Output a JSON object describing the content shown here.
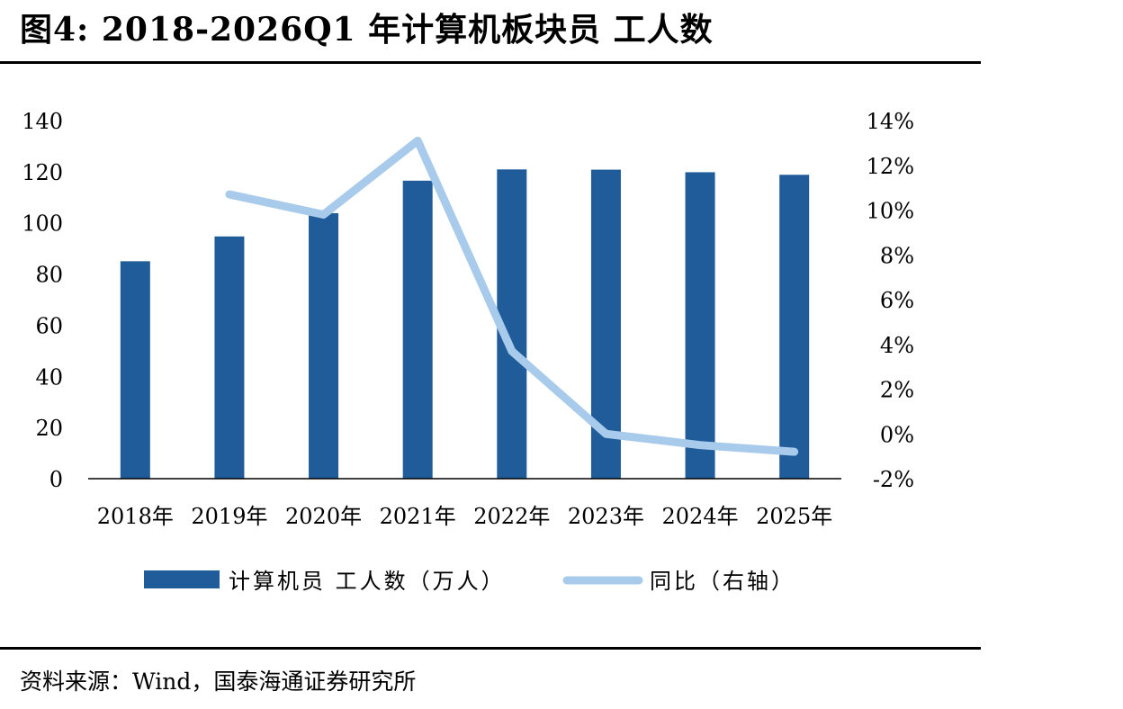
{
  "title": "图4:  2018-2026Q1 年计算机板块员 工人数",
  "source": "资料来源：Wind，国泰海通证券研究所",
  "colors": {
    "bar": "#1f5c99",
    "line": "#a8cbec",
    "axis": "#000000"
  },
  "chart_data": {
    "type": "bar",
    "categories": [
      "2018年",
      "2019年",
      "2020年",
      "2021年",
      "2022年",
      "2023年",
      "2024年",
      "2025年"
    ],
    "series": [
      {
        "name": "计算机员 工人数（万人）",
        "type": "bar",
        "axis": "left",
        "values": [
          85.0,
          94.7,
          103.8,
          116.5,
          120.9,
          120.8,
          119.8,
          118.8
        ]
      },
      {
        "name": "同比（右轴）",
        "type": "line",
        "axis": "right",
        "values": [
          null,
          10.7,
          9.8,
          13.1,
          3.7,
          0.0,
          -0.5,
          -0.8
        ]
      }
    ],
    "y_left": {
      "min": 0,
      "max": 140,
      "ticks": [
        "0",
        "20",
        "40",
        "60",
        "80",
        "100",
        "120",
        "140"
      ]
    },
    "y_right": {
      "min": -2,
      "max": 14,
      "ticks": [
        "-2%",
        "0%",
        "2%",
        "4%",
        "6%",
        "8%",
        "10%",
        "12%",
        "14%"
      ]
    },
    "grid": false,
    "legend": "bottom"
  }
}
